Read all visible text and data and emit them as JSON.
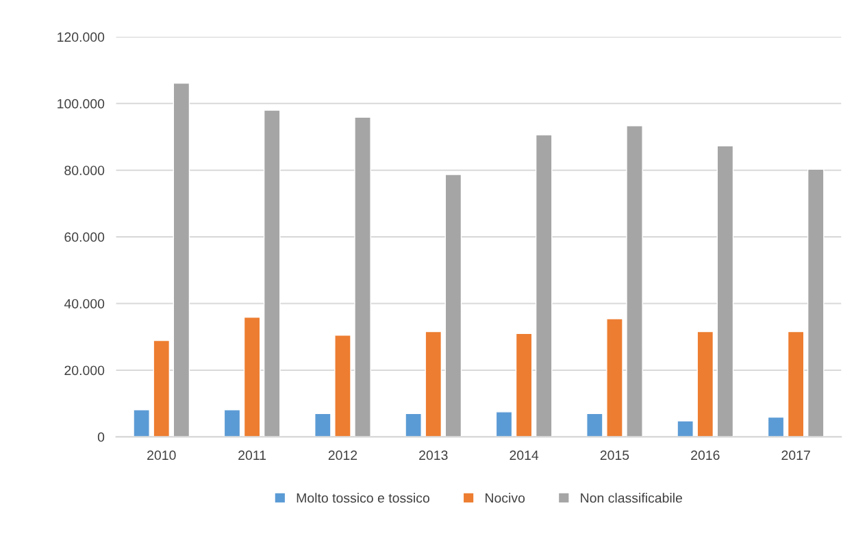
{
  "chart_data": {
    "type": "bar",
    "categories": [
      "2010",
      "2011",
      "2012",
      "2013",
      "2014",
      "2015",
      "2016",
      "2017"
    ],
    "series": [
      {
        "name": "Molto tossico e tossico",
        "color": "#5b9bd5",
        "values": [
          8100,
          8100,
          7000,
          7000,
          7500,
          7000,
          4800,
          5900
        ]
      },
      {
        "name": "Nocivo",
        "color": "#ed7d31",
        "values": [
          28900,
          35900,
          30500,
          31600,
          31000,
          35400,
          31600,
          31600
        ]
      },
      {
        "name": "Non classificabile",
        "color": "#a5a5a5",
        "values": [
          106100,
          98000,
          95900,
          78700,
          90600,
          93300,
          87300,
          80300
        ]
      }
    ],
    "ylim": [
      0,
      120000
    ],
    "yticks": [
      0,
      {
        "value": 20000,
        "label": "20.000"
      },
      {
        "value": 40000,
        "label": "40.000"
      },
      {
        "value": 60000,
        "label": "60.000"
      },
      {
        "value": 80000,
        "label": "80.000"
      },
      {
        "value": 100000,
        "label": "100.000"
      },
      {
        "value": 120000,
        "label": "120.000"
      }
    ],
    "grid": "y",
    "legend": "bottom"
  }
}
